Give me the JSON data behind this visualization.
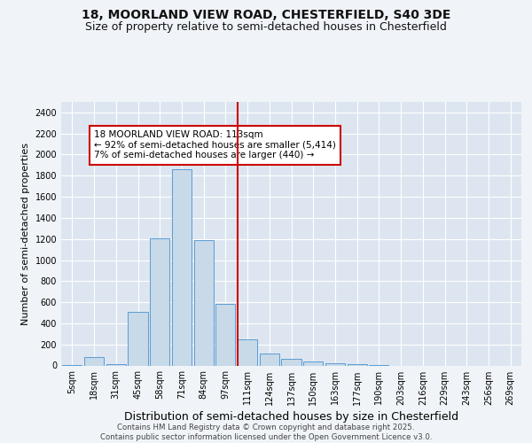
{
  "title_line1": "18, MOORLAND VIEW ROAD, CHESTERFIELD, S40 3DE",
  "title_line2": "Size of property relative to semi-detached houses in Chesterfield",
  "xlabel": "Distribution of semi-detached houses by size in Chesterfield",
  "ylabel": "Number of semi-detached properties",
  "categories": [
    "5sqm",
    "18sqm",
    "31sqm",
    "45sqm",
    "58sqm",
    "71sqm",
    "84sqm",
    "97sqm",
    "111sqm",
    "124sqm",
    "137sqm",
    "150sqm",
    "163sqm",
    "177sqm",
    "190sqm",
    "203sqm",
    "216sqm",
    "229sqm",
    "243sqm",
    "256sqm",
    "269sqm"
  ],
  "values": [
    5,
    80,
    10,
    510,
    1210,
    1860,
    1190,
    580,
    250,
    110,
    65,
    40,
    25,
    10,
    5,
    0,
    0,
    0,
    0,
    0,
    0
  ],
  "bar_color": "#c8d9e8",
  "bar_edge_color": "#5b9bd5",
  "vline_index": 8,
  "vline_color": "#cc0000",
  "annotation_text": "18 MOORLAND VIEW ROAD: 113sqm\n← 92% of semi-detached houses are smaller (5,414)\n7% of semi-detached houses are larger (440) →",
  "annotation_box_color": "#cc0000",
  "annotation_ix": 1.0,
  "annotation_iy": 2230,
  "ylim": [
    0,
    2500
  ],
  "yticks": [
    0,
    200,
    400,
    600,
    800,
    1000,
    1200,
    1400,
    1600,
    1800,
    2000,
    2200,
    2400
  ],
  "bg_color": "#dde6f0",
  "grid_color": "#ffffff",
  "footer": "Contains HM Land Registry data © Crown copyright and database right 2025.\nContains public sector information licensed under the Open Government Licence v3.0.",
  "title_fontsize": 10,
  "subtitle_fontsize": 9,
  "tick_fontsize": 7,
  "ylabel_fontsize": 8,
  "xlabel_fontsize": 9
}
